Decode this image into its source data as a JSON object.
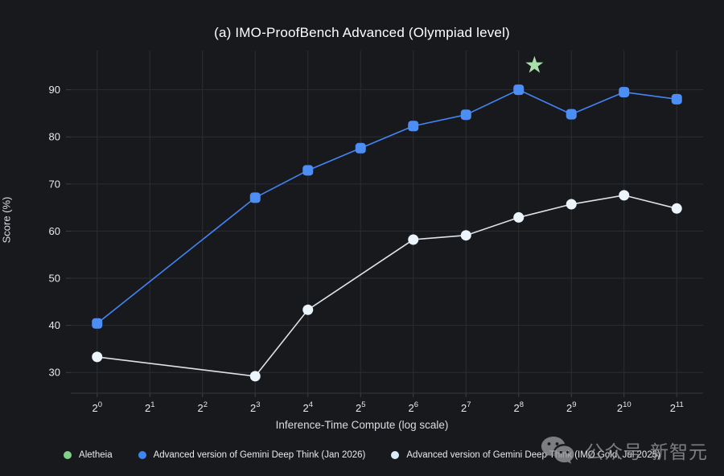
{
  "title": "(a) IMO-ProofBench Advanced (Olympiad level)",
  "watermark": {
    "icon": "wechat-icon",
    "text": "公众号·新智元"
  },
  "colors": {
    "background": "#18191d",
    "grid": "#2b2d32",
    "tick": "#3a3d42",
    "axis_line": "#33363b",
    "tick_text": "#e8eaed",
    "axis_label_text": "#d9dde1",
    "blue_series": "#4285f4",
    "blue_marker": "#4d8ef5",
    "white_series_line": "#dfe3e6",
    "white_marker": "#edf5fc",
    "star_green": "#a9dfab",
    "legend_green": "#82d18a"
  },
  "legend": {
    "items": [
      {
        "label": "Aletheia",
        "color": "#82d18a",
        "shape": "circle"
      },
      {
        "label": "Advanced version of Gemini Deep Think (Jan 2026)",
        "color": "#3d86f0",
        "shape": "circle"
      },
      {
        "label": "Advanced version of Gemini Deep Think (IMO Gold, Jul 2025)",
        "color": "#d9ecfa",
        "shape": "circle"
      }
    ]
  },
  "chart_data": {
    "type": "line",
    "title": "(a) IMO-ProofBench Advanced (Olympiad level)",
    "xlabel": "Inference-Time Compute (log scale)",
    "ylabel": "Score (%)",
    "x_scale": "log2",
    "x_tick_exponents": [
      0,
      1,
      2,
      3,
      4,
      5,
      6,
      7,
      8,
      9,
      10,
      11
    ],
    "x_tick_base": "2",
    "y_ticks": [
      30,
      40,
      50,
      60,
      70,
      80,
      90
    ],
    "xlim_exponent": [
      -0.5,
      11.5
    ],
    "ylim": [
      25.6,
      98.3
    ],
    "grid": true,
    "legend_position": "bottom",
    "series": [
      {
        "name": "Aletheia",
        "color": "#a9dfab",
        "marker": "star",
        "line": false,
        "points": [
          [
            8.3,
            95.2
          ]
        ]
      },
      {
        "name": "Advanced version of Gemini Deep Think (Jan 2026)",
        "color": "#4285f4",
        "marker_color": "#4d8ef5",
        "marker": "rounded-square",
        "line": true,
        "points": [
          [
            0,
            40.4
          ],
          [
            3,
            67.1
          ],
          [
            4,
            72.9
          ],
          [
            5,
            77.6
          ],
          [
            6,
            82.3
          ],
          [
            7,
            84.7
          ],
          [
            8,
            90.0
          ],
          [
            9,
            84.8
          ],
          [
            10,
            89.5
          ],
          [
            11,
            88.0
          ]
        ]
      },
      {
        "name": "Advanced version of Gemini Deep Think (IMO Gold, Jul 2025)",
        "color": "#dfe3e6",
        "marker_color": "#edf5fc",
        "marker": "circle",
        "line": true,
        "points": [
          [
            0,
            33.3
          ],
          [
            3,
            29.2
          ],
          [
            4,
            43.3
          ],
          [
            6,
            58.2
          ],
          [
            7,
            59.1
          ],
          [
            8,
            62.9
          ],
          [
            9,
            65.7
          ],
          [
            10,
            67.6
          ],
          [
            11,
            64.8
          ]
        ]
      }
    ]
  }
}
